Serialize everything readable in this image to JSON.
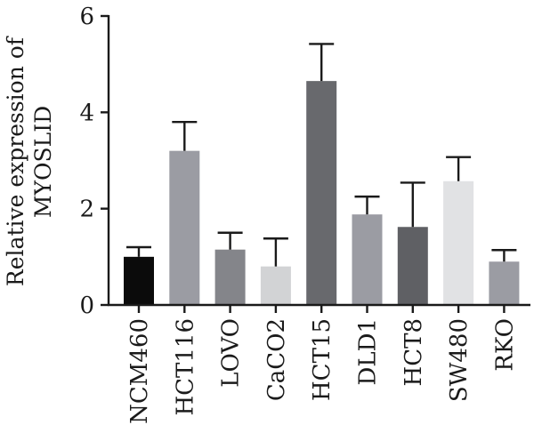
{
  "chart_data": {
    "type": "bar",
    "ylabel_lines": [
      "Relative expression of",
      "MYOSLID"
    ],
    "xlabel": "",
    "ylim": [
      0,
      6
    ],
    "yticks": [
      "0",
      "2",
      "4",
      "6"
    ],
    "categories": [
      "NCM460",
      "HCT116",
      "LOVO",
      "CaCO2",
      "HCT15",
      "DLD1",
      "HCT8",
      "SW480",
      "RKO"
    ],
    "values": [
      1.0,
      3.2,
      1.15,
      0.8,
      4.65,
      1.88,
      1.62,
      2.57,
      0.9
    ],
    "errors": [
      0.2,
      0.6,
      0.35,
      0.58,
      0.77,
      0.37,
      0.92,
      0.5,
      0.24
    ],
    "colors": [
      "#0b0b0b",
      "#9b9ca3",
      "#84858a",
      "#d2d3d5",
      "#68696d",
      "#9b9ca3",
      "#5f6064",
      "#e1e2e4",
      "#9b9ca3"
    ],
    "grid": false,
    "legend": "none"
  }
}
